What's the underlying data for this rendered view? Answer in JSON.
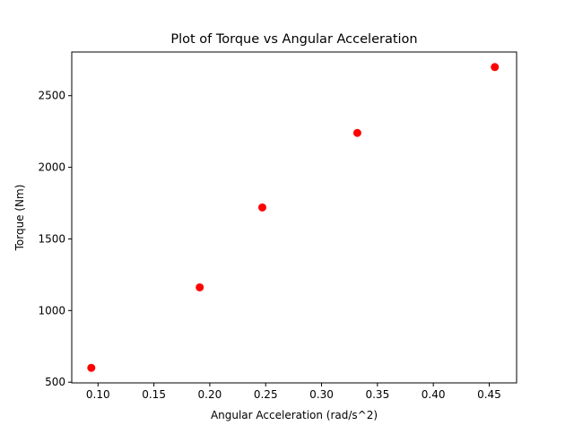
{
  "chart_data": {
    "type": "scatter",
    "title": "Plot of Torque vs Angular Acceleration",
    "xlabel": "Angular Acceleration (rad/s^2)",
    "ylabel": "Torque (Nm)",
    "xlim": [
      0.0765,
      0.4745
    ],
    "ylim": [
      495,
      2805
    ],
    "xticks": [
      0.1,
      0.15,
      0.2,
      0.25,
      0.3,
      0.35,
      0.4,
      0.45
    ],
    "xtick_labels": [
      "0.10",
      "0.15",
      "0.20",
      "0.25",
      "0.30",
      "0.35",
      "0.40",
      "0.45"
    ],
    "yticks": [
      500,
      1000,
      1500,
      2000,
      2500
    ],
    "ytick_labels": [
      "500",
      "1000",
      "1500",
      "2000",
      "2500"
    ],
    "grid": false,
    "legend": "none",
    "marker_color": "#ff0000",
    "series": [
      {
        "x": [
          0.094,
          0.191,
          0.247,
          0.332,
          0.455
        ],
        "y": [
          600,
          1162,
          1720,
          2240,
          2700
        ]
      }
    ]
  }
}
